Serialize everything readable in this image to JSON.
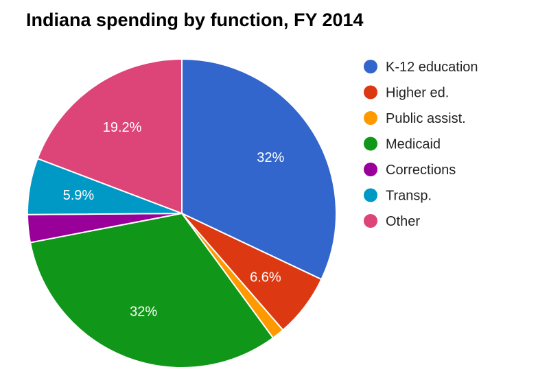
{
  "chart_data": {
    "type": "pie",
    "title": "Indiana spending by function, FY 2014",
    "slices": [
      {
        "label": "K-12 education",
        "value": 32.0,
        "display": "32%",
        "color": "#3366cc"
      },
      {
        "label": "Higher ed.",
        "value": 6.6,
        "display": "6.6%",
        "color": "#dc3912"
      },
      {
        "label": "Public assist.",
        "value": 1.3,
        "display": "",
        "color": "#ff9900"
      },
      {
        "label": "Medicaid",
        "value": 32.0,
        "display": "32%",
        "color": "#109618"
      },
      {
        "label": "Corrections",
        "value": 2.9,
        "display": "",
        "color": "#990099"
      },
      {
        "label": "Transp.",
        "value": 5.9,
        "display": "5.9%",
        "color": "#0099c6"
      },
      {
        "label": "Other",
        "value": 19.2,
        "display": "19.2%",
        "color": "#dd4477"
      }
    ],
    "legend_position": "right"
  }
}
